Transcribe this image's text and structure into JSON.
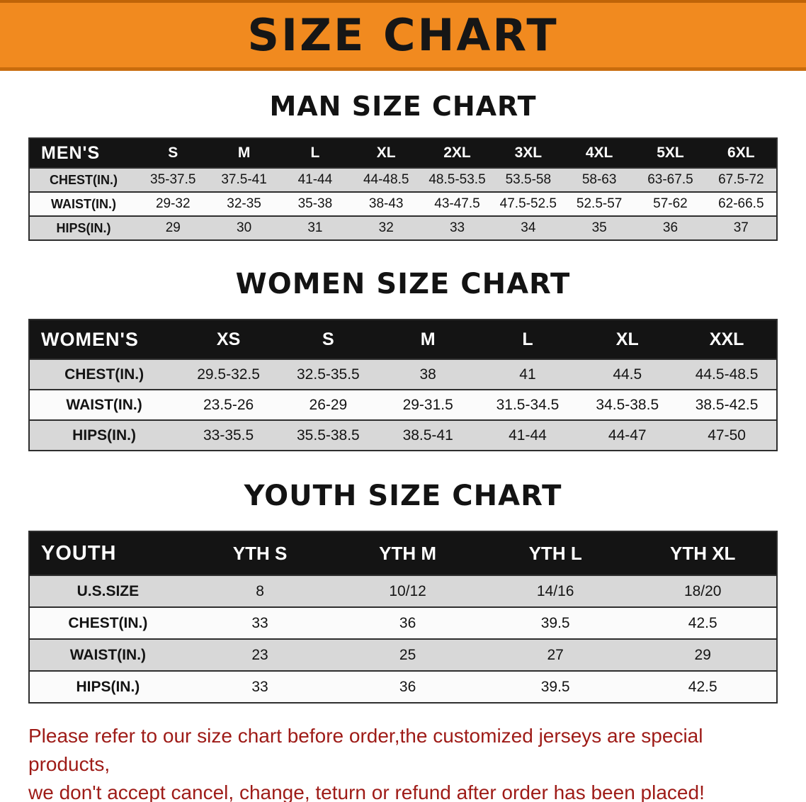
{
  "banner": {
    "title": "SIZE CHART"
  },
  "sections": [
    {
      "title": "MAN SIZE CHART",
      "table": {
        "header": [
          "MEN'S",
          "S",
          "M",
          "L",
          "XL",
          "2XL",
          "3XL",
          "4XL",
          "5XL",
          "6XL"
        ],
        "rows": [
          {
            "label": "CHEST(IN.)",
            "values": [
              "35-37.5",
              "37.5-41",
              "41-44",
              "44-48.5",
              "48.5-53.5",
              "53.5-58",
              "58-63",
              "63-67.5",
              "67.5-72"
            ]
          },
          {
            "label": "WAIST(IN.)",
            "values": [
              "29-32",
              "32-35",
              "35-38",
              "38-43",
              "43-47.5",
              "47.5-52.5",
              "52.5-57",
              "57-62",
              "62-66.5"
            ]
          },
          {
            "label": "HIPS(IN.)",
            "values": [
              "29",
              "30",
              "31",
              "32",
              "33",
              "34",
              "35",
              "36",
              "37"
            ]
          }
        ]
      }
    },
    {
      "title": "WOMEN SIZE CHART",
      "table": {
        "header": [
          "WOMEN'S",
          "XS",
          "S",
          "M",
          "L",
          "XL",
          "XXL"
        ],
        "rows": [
          {
            "label": "CHEST(IN.)",
            "values": [
              "29.5-32.5",
              "32.5-35.5",
              "38",
              "41",
              "44.5",
              "44.5-48.5"
            ]
          },
          {
            "label": "WAIST(IN.)",
            "values": [
              "23.5-26",
              "26-29",
              "29-31.5",
              "31.5-34.5",
              "34.5-38.5",
              "38.5-42.5"
            ]
          },
          {
            "label": "HIPS(IN.)",
            "values": [
              "33-35.5",
              "35.5-38.5",
              "38.5-41",
              "41-44",
              "44-47",
              "47-50"
            ]
          }
        ]
      }
    },
    {
      "title": "YOUTH SIZE CHART",
      "table": {
        "header": [
          "YOUTH",
          "YTH S",
          "YTH M",
          "YTH L",
          "YTH XL"
        ],
        "rows": [
          {
            "label": "U.S.SIZE",
            "values": [
              "8",
              "10/12",
              "14/16",
              "18/20"
            ]
          },
          {
            "label": "CHEST(IN.)",
            "values": [
              "33",
              "36",
              "39.5",
              "42.5"
            ]
          },
          {
            "label": "WAIST(IN.)",
            "values": [
              "23",
              "25",
              "27",
              "29"
            ]
          },
          {
            "label": "HIPS(IN.)",
            "values": [
              "33",
              "36",
              "39.5",
              "42.5"
            ]
          }
        ]
      }
    }
  ],
  "footer": {
    "line1": "Please refer to our size chart before order,the customized jerseys are special products,",
    "line2": "we don't accept cancel, change, teturn or refund after order has been placed!"
  },
  "colors": {
    "banner_bg": "#f18a1f",
    "header_bg": "#141414",
    "stripe": "#d8d8d8",
    "border_col": "#2e2e2e",
    "footer_text": "#9e1b17"
  }
}
